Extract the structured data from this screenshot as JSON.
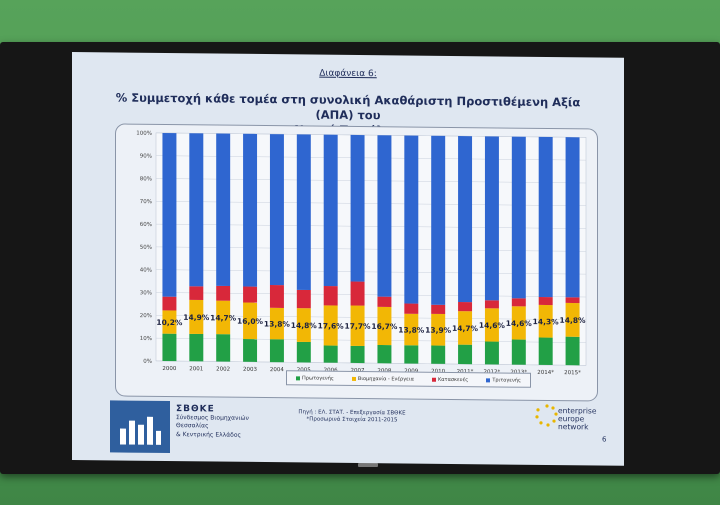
{
  "slide": {
    "label": "Διαφάνεια 6:",
    "title_line1": "% Συμμετοχή κάθε τομέα στη συνολική Ακαθάριστη Προστιθέμενη Αξία (ΑΠΑ) του",
    "title_line2": "Νομού Τρικάλων",
    "page_number": "6"
  },
  "footer": {
    "org_short": "ΣΒΘΚΕ",
    "org_line1": "Σύνδεσμος Βιομηχανιών",
    "org_line2": "Θεσσαλίας",
    "org_line3": "& Κεντρικής Ελλάδος",
    "source_line1": "Πηγή : ΕΛ. ΣΤΑΤ. - Επεξεργασία ΣΒΘΚΕ",
    "source_line2": "*Προσωρινά Στοιχεία 2011-2015",
    "een_line1": "enterprise",
    "een_line2": "europe",
    "een_line3": "network"
  },
  "chart_data": {
    "type": "bar",
    "stacked": true,
    "categories": [
      "2000",
      "2001",
      "2002",
      "2003",
      "2004",
      "2005",
      "2006",
      "2007",
      "2008",
      "2009",
      "2010",
      "2011*",
      "2012*",
      "2013*",
      "2014*",
      "2015*"
    ],
    "ylim": [
      0,
      100
    ],
    "yticks": [
      "0%",
      "10%",
      "20%",
      "30%",
      "40%",
      "50%",
      "60%",
      "70%",
      "80%",
      "90%",
      "100%"
    ],
    "series": [
      {
        "name": "Πρωτογενής",
        "color": "#22a046",
        "values": [
          12.0,
          12.0,
          12.0,
          10.0,
          10.0,
          9.0,
          7.5,
          7.5,
          8.0,
          8.0,
          8.0,
          8.5,
          10.0,
          11.0,
          12.0,
          12.5
        ]
      },
      {
        "name": "Βιομηχανία - Ενέργεια",
        "color": "#f2b705",
        "values": [
          10.2,
          14.9,
          14.7,
          16.0,
          13.8,
          14.8,
          17.6,
          17.7,
          16.7,
          13.8,
          13.9,
          14.7,
          14.6,
          14.6,
          14.3,
          14.8
        ]
      },
      {
        "name": "Κατασκευές",
        "color": "#d8283a",
        "values": [
          6.0,
          6.0,
          6.5,
          7.0,
          10.0,
          8.0,
          8.5,
          10.5,
          4.5,
          4.5,
          4.0,
          4.0,
          3.5,
          3.5,
          3.5,
          2.5
        ]
      },
      {
        "name": "Τριτογενής",
        "color": "#2f66d0",
        "values": [
          71.8,
          67.1,
          66.8,
          67.0,
          66.2,
          68.2,
          66.4,
          64.3,
          70.8,
          73.7,
          74.1,
          72.8,
          71.9,
          70.9,
          70.2,
          70.2
        ]
      }
    ],
    "data_labels": {
      "Βιομηχανία - Ενέργεια": [
        "10,2%",
        "14,9%",
        "14,7%",
        "16,0%",
        "13,8%",
        "14,8%",
        "17,6%",
        "17,7%",
        "16,7%",
        "13,8%",
        "13,9%",
        "14,7%",
        "14,6%",
        "14,6%",
        "14,3%",
        "14,8%"
      ]
    },
    "legend": "bottom"
  }
}
